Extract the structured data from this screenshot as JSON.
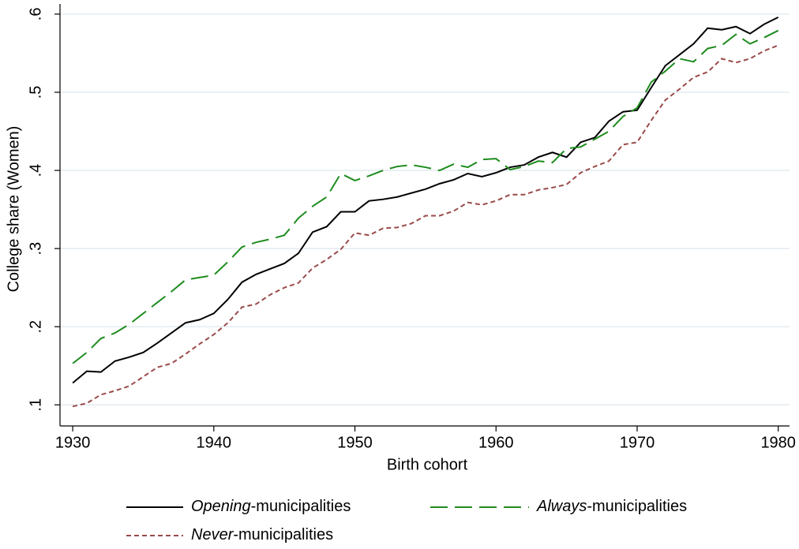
{
  "chart_data": {
    "type": "line",
    "xlabel": "Birth cohort",
    "ylabel": "College share (Women)",
    "x": [
      1930,
      1931,
      1932,
      1933,
      1934,
      1935,
      1936,
      1937,
      1938,
      1939,
      1940,
      1941,
      1942,
      1943,
      1944,
      1945,
      1946,
      1947,
      1948,
      1949,
      1950,
      1951,
      1952,
      1953,
      1954,
      1955,
      1956,
      1957,
      1958,
      1959,
      1960,
      1961,
      1962,
      1963,
      1964,
      1965,
      1966,
      1967,
      1968,
      1969,
      1970,
      1971,
      1972,
      1973,
      1974,
      1975,
      1976,
      1977,
      1978,
      1979,
      1980
    ],
    "series": [
      {
        "name": "Opening-municipalities",
        "color": "#000000",
        "dash": "solid",
        "values": [
          0.128,
          0.143,
          0.142,
          0.156,
          0.161,
          0.167,
          0.179,
          0.192,
          0.205,
          0.209,
          0.217,
          0.235,
          0.257,
          0.267,
          0.274,
          0.281,
          0.294,
          0.321,
          0.328,
          0.347,
          0.347,
          0.361,
          0.363,
          0.366,
          0.371,
          0.376,
          0.383,
          0.388,
          0.396,
          0.392,
          0.397,
          0.404,
          0.407,
          0.417,
          0.423,
          0.417,
          0.436,
          0.442,
          0.463,
          0.475,
          0.477,
          0.506,
          0.534,
          0.548,
          0.562,
          0.582,
          0.58,
          0.584,
          0.575,
          0.587,
          0.596
        ]
      },
      {
        "name": "Always-municipalities",
        "color": "#1e8c1e",
        "dash": "long",
        "values": [
          0.153,
          0.167,
          0.185,
          0.192,
          0.203,
          0.217,
          0.231,
          0.245,
          0.26,
          0.263,
          0.266,
          0.283,
          0.302,
          0.308,
          0.312,
          0.317,
          0.339,
          0.354,
          0.366,
          0.396,
          0.387,
          0.393,
          0.4,
          0.405,
          0.407,
          0.404,
          0.4,
          0.408,
          0.404,
          0.414,
          0.415,
          0.401,
          0.405,
          0.412,
          0.41,
          0.428,
          0.43,
          0.44,
          0.45,
          0.469,
          0.48,
          0.513,
          0.527,
          0.543,
          0.539,
          0.556,
          0.56,
          0.574,
          0.562,
          0.57,
          0.579
        ]
      },
      {
        "name": "Never-municipalities",
        "color": "#9a4a4a",
        "dash": "short",
        "values": [
          0.098,
          0.102,
          0.113,
          0.118,
          0.124,
          0.136,
          0.148,
          0.153,
          0.165,
          0.178,
          0.19,
          0.205,
          0.225,
          0.229,
          0.241,
          0.25,
          0.256,
          0.275,
          0.286,
          0.299,
          0.32,
          0.317,
          0.326,
          0.327,
          0.332,
          0.342,
          0.342,
          0.348,
          0.359,
          0.356,
          0.361,
          0.369,
          0.369,
          0.375,
          0.378,
          0.382,
          0.397,
          0.405,
          0.412,
          0.433,
          0.436,
          0.464,
          0.49,
          0.504,
          0.519,
          0.526,
          0.543,
          0.538,
          0.543,
          0.553,
          0.56
        ]
      }
    ],
    "xlim": [
      1929.1,
      1980.8
    ],
    "xticks": [
      1930,
      1940,
      1950,
      1960,
      1970,
      1980
    ],
    "ylim": [
      0.073,
      0.613
    ],
    "yticks": [
      {
        "value": 0.1,
        "label": ".1"
      },
      {
        "value": 0.2,
        "label": ".2"
      },
      {
        "value": 0.3,
        "label": ".3"
      },
      {
        "value": 0.4,
        "label": ".4"
      },
      {
        "value": 0.5,
        "label": ".5"
      },
      {
        "value": 0.6,
        "label": ".6"
      }
    ],
    "grid": true
  }
}
